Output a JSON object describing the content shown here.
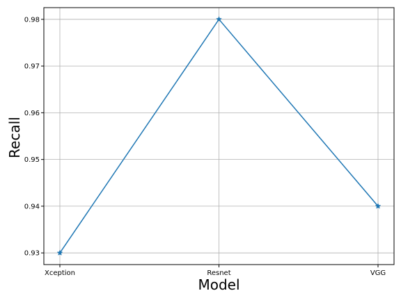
{
  "chart_data": {
    "type": "line",
    "title": "",
    "xlabel": "Model",
    "ylabel": "Recall",
    "categories": [
      "Xception",
      "Resnet",
      "VGG"
    ],
    "series": [
      {
        "values": [
          0.93,
          0.98,
          0.94
        ],
        "color": "#1f77b4",
        "marker": "star"
      }
    ],
    "yticks": [
      "0.93",
      "0.94",
      "0.95",
      "0.96",
      "0.97",
      "0.98"
    ],
    "ylim": [
      0.9275,
      0.9825
    ],
    "grid": true
  }
}
